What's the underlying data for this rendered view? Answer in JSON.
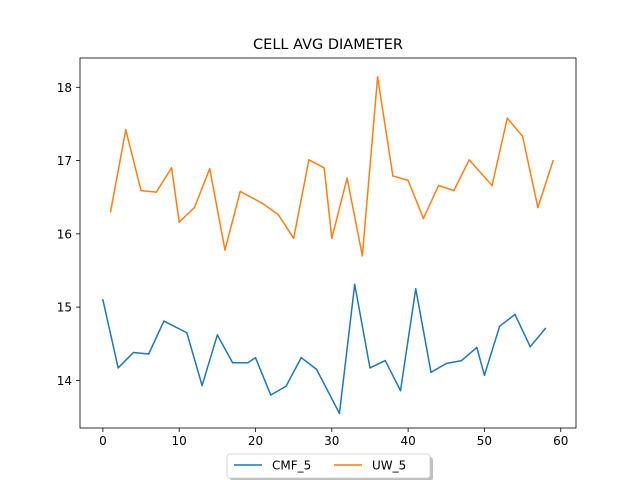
{
  "chart_data": {
    "type": "line",
    "title": "CELL AVG  DIAMETER",
    "xlabel": "",
    "ylabel": "",
    "xlim": [
      -3,
      62
    ],
    "ylim": [
      13.35,
      18.4
    ],
    "x_ticks": [
      0,
      10,
      20,
      30,
      40,
      50,
      60
    ],
    "y_ticks": [
      14,
      15,
      16,
      17,
      18
    ],
    "grid": false,
    "legend_placement": "bottom-center",
    "series": [
      {
        "name": "CMF_5",
        "color": "#1f77b4",
        "x": [
          0,
          2,
          4,
          6,
          8,
          11,
          13,
          15,
          17,
          19,
          20,
          22,
          24,
          26,
          28,
          31,
          33,
          35,
          37,
          39,
          41,
          43,
          45,
          47,
          49,
          50,
          52,
          54,
          56,
          58
        ],
        "values": [
          15.1,
          14.17,
          14.38,
          14.36,
          14.81,
          14.65,
          13.93,
          14.62,
          14.24,
          14.24,
          14.31,
          13.8,
          13.92,
          14.31,
          14.15,
          13.55,
          15.31,
          14.17,
          14.27,
          13.86,
          15.25,
          14.11,
          14.23,
          14.27,
          14.45,
          14.07,
          14.74,
          14.9,
          14.46,
          14.71
        ]
      },
      {
        "name": "UW_5",
        "color": "#ff7f0e",
        "x": [
          1,
          3,
          5,
          7,
          9,
          10,
          12,
          14,
          16,
          18,
          21,
          23,
          25,
          27,
          29,
          30,
          32,
          34,
          36,
          38,
          40,
          42,
          44,
          46,
          48,
          51,
          53,
          55,
          57,
          59
        ],
        "values": [
          16.3,
          17.42,
          16.59,
          16.57,
          16.9,
          16.16,
          16.36,
          16.89,
          15.78,
          16.58,
          16.41,
          16.26,
          15.94,
          17.01,
          16.9,
          15.94,
          16.76,
          15.7,
          18.14,
          16.79,
          16.73,
          16.21,
          16.66,
          16.59,
          17.01,
          16.66,
          17.58,
          17.33,
          16.36,
          17.0
        ]
      }
    ]
  }
}
